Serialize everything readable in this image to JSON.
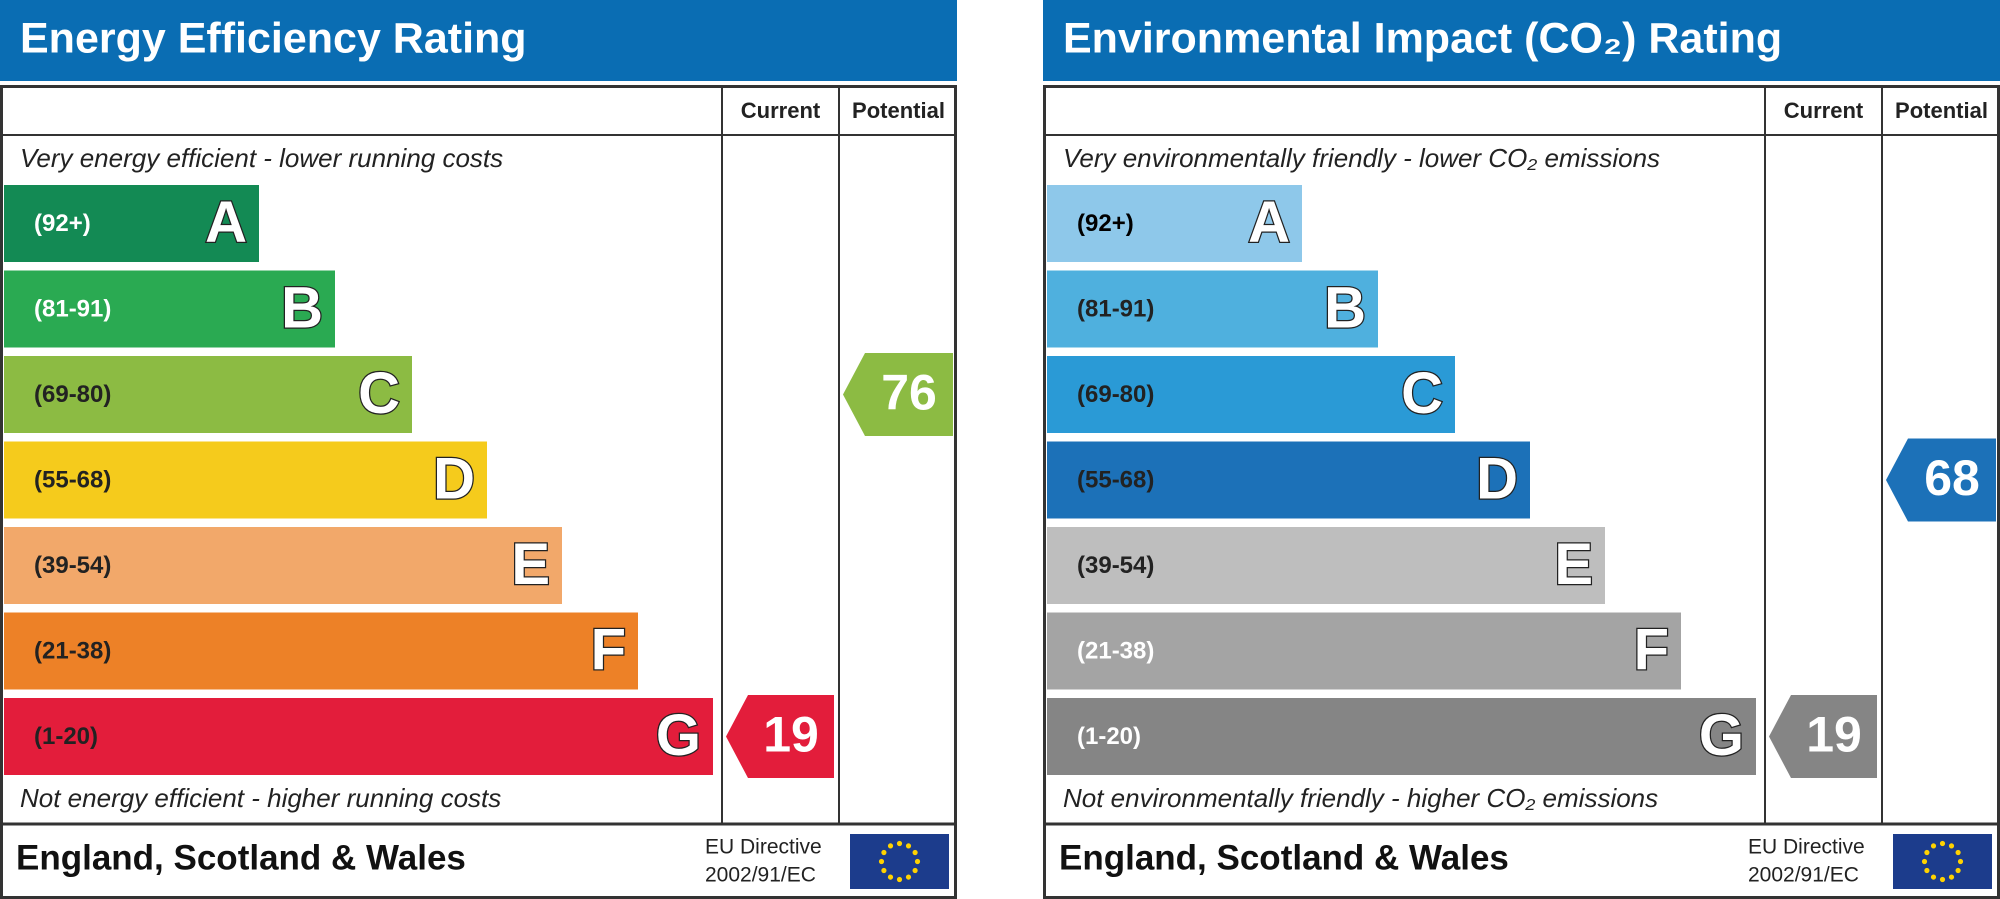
{
  "panels": [
    {
      "title": "Energy Efficiency Rating",
      "header_current": "Current",
      "header_potential": "Potential",
      "top_note": "Very energy efficient - lower running costs",
      "bottom_note": "Not energy efficient - higher running costs",
      "bands": [
        {
          "range": "(92+)",
          "letter": "A",
          "color": "#138a54",
          "text_color": "#ffffff"
        },
        {
          "range": "(81-91)",
          "letter": "B",
          "color": "#2aaa52",
          "text_color": "#ffffff"
        },
        {
          "range": "(69-80)",
          "letter": "C",
          "color": "#8cbb43",
          "text_color": "#222222"
        },
        {
          "range": "(55-68)",
          "letter": "D",
          "color": "#f5cb1c",
          "text_color": "#222222"
        },
        {
          "range": "(39-54)",
          "letter": "E",
          "color": "#f2a86a",
          "text_color": "#222222"
        },
        {
          "range": "(21-38)",
          "letter": "F",
          "color": "#ed8127",
          "text_color": "#222222"
        },
        {
          "range": "(1-20)",
          "letter": "G",
          "color": "#e31d3b",
          "text_color": "#222222"
        }
      ],
      "current": 19,
      "potential": 76,
      "footer": "England, Scotland & Wales",
      "directive_line1": "EU Directive",
      "directive_line2": "2002/91/EC"
    },
    {
      "title": "Environmental Impact (CO₂) Rating",
      "header_current": "Current",
      "header_potential": "Potential",
      "top_note": "Very environmentally friendly - lower CO₂ emissions",
      "bottom_note": "Not environmentally friendly - higher CO₂ emissions",
      "bands": [
        {
          "range": "(92+)",
          "letter": "A",
          "color": "#8ec8ea",
          "text_color": "#000000"
        },
        {
          "range": "(81-91)",
          "letter": "B",
          "color": "#4fb0de",
          "text_color": "#222222"
        },
        {
          "range": "(69-80)",
          "letter": "C",
          "color": "#2a9ad6",
          "text_color": "#222222"
        },
        {
          "range": "(55-68)",
          "letter": "D",
          "color": "#1c71b8",
          "text_color": "#222222"
        },
        {
          "range": "(39-54)",
          "letter": "E",
          "color": "#bebebe",
          "text_color": "#222222"
        },
        {
          "range": "(21-38)",
          "letter": "F",
          "color": "#a4a4a4",
          "text_color": "#ffffff"
        },
        {
          "range": "(1-20)",
          "letter": "G",
          "color": "#858585",
          "text_color": "#ffffff"
        }
      ],
      "current": 19,
      "potential": 68,
      "footer": "England, Scotland & Wales",
      "directive_line1": "EU Directive",
      "directive_line2": "2002/91/EC"
    }
  ]
}
